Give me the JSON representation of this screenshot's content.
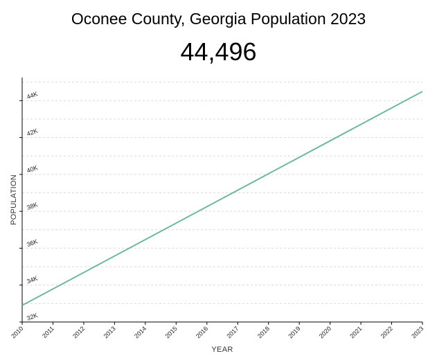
{
  "header": {
    "title": "Oconee County, Georgia Population 2023",
    "value": "44,496"
  },
  "colors": {
    "line": "#6cb8a0",
    "grid": "#d9d9d9",
    "axis": "#000000"
  },
  "chart_data": {
    "type": "line",
    "title": "Oconee County, Georgia Population 2023",
    "xlabel": "YEAR",
    "ylabel": "POPULATION",
    "x": [
      2010,
      2023
    ],
    "series": [
      {
        "values": [
          32900,
          44496
        ]
      }
    ],
    "xticks": [
      "2010",
      "2011",
      "2012",
      "2013",
      "2014",
      "2015",
      "2016",
      "2017",
      "2018",
      "2019",
      "2020",
      "2021",
      "2022",
      "2023"
    ],
    "yticks": [
      {
        "value": 32000,
        "label": "32K"
      },
      {
        "value": 34000,
        "label": "34K"
      },
      {
        "value": 36000,
        "label": "36K"
      },
      {
        "value": 38000,
        "label": "38K"
      },
      {
        "value": 40000,
        "label": "40K"
      },
      {
        "value": 42000,
        "label": "42K"
      },
      {
        "value": 44000,
        "label": "44K"
      }
    ],
    "xlim": [
      2010,
      2023
    ],
    "ylim": [
      32000,
      45250
    ],
    "grid": true
  }
}
